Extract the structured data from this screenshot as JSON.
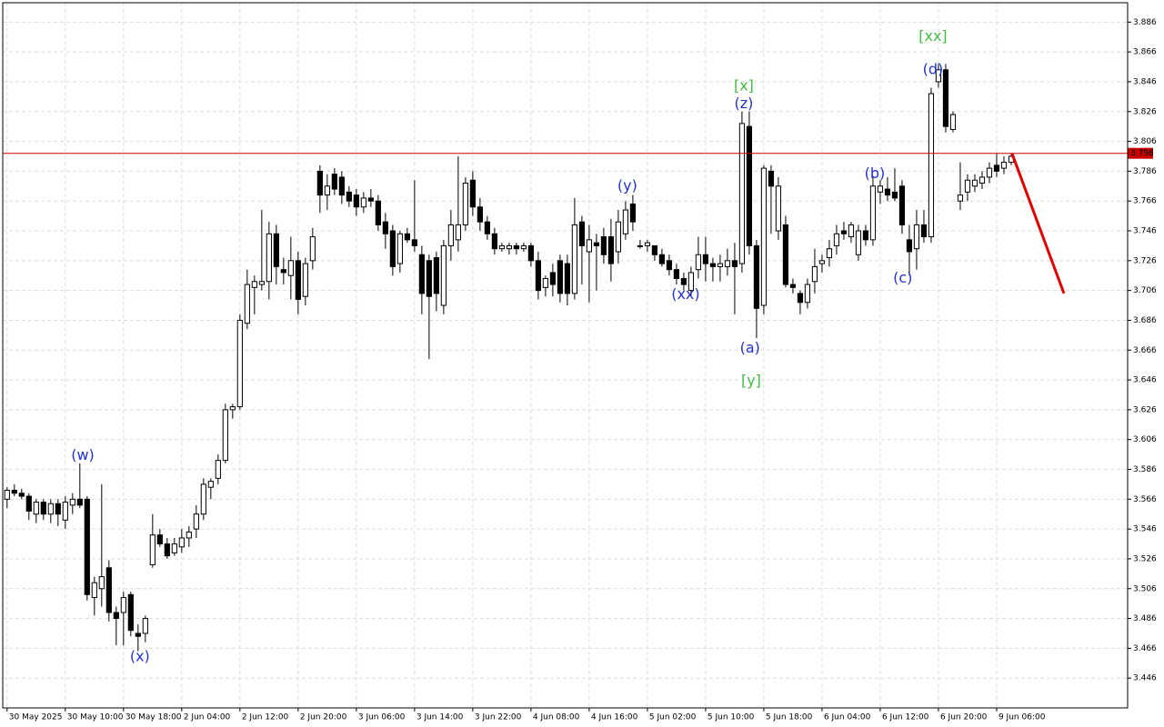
{
  "chart_data": {
    "type": "candlestick",
    "xlim": [
      -0.6,
      154
    ],
    "ylim": [
      3.426,
      3.899
    ],
    "yticks": [
      3.446,
      3.466,
      3.486,
      3.506,
      3.526,
      3.546,
      3.566,
      3.586,
      3.606,
      3.626,
      3.646,
      3.666,
      3.686,
      3.706,
      3.726,
      3.746,
      3.766,
      3.786,
      3.806,
      3.826,
      3.846,
      3.866,
      3.886
    ],
    "xticks": [
      {
        "value": 0,
        "label": "30 May 2025"
      },
      {
        "value": 8,
        "label": "30 May 10:00"
      },
      {
        "value": 16,
        "label": "30 May 18:00"
      },
      {
        "value": 24,
        "label": "2 Jun 04:00"
      },
      {
        "value": 32,
        "label": "2 Jun 12:00"
      },
      {
        "value": 40,
        "label": "2 Jun 20:00"
      },
      {
        "value": 48,
        "label": "3 Jun 06:00"
      },
      {
        "value": 56,
        "label": "3 Jun 14:00"
      },
      {
        "value": 64,
        "label": "3 Jun 22:00"
      },
      {
        "value": 72,
        "label": "4 Jun 08:00"
      },
      {
        "value": 80,
        "label": "4 Jun 16:00"
      },
      {
        "value": 88,
        "label": "5 Jun 02:00"
      },
      {
        "value": 96,
        "label": "5 Jun 10:00"
      },
      {
        "value": 104,
        "label": "5 Jun 18:00"
      },
      {
        "value": 112,
        "label": "6 Jun 04:00"
      },
      {
        "value": 120,
        "label": "6 Jun 12:00"
      },
      {
        "value": 128,
        "label": "6 Jun 20:00"
      },
      {
        "value": 136,
        "label": "9 Jun 06:00"
      }
    ],
    "grid": true,
    "ohlc": [
      [
        3.566,
        3.574,
        3.56,
        3.572
      ],
      [
        3.572,
        3.576,
        3.568,
        3.57
      ],
      [
        3.57,
        3.573,
        3.566,
        3.568
      ],
      [
        3.568,
        3.57,
        3.552,
        3.558
      ],
      [
        3.556,
        3.566,
        3.55,
        3.564
      ],
      [
        3.564,
        3.566,
        3.552,
        3.556
      ],
      [
        3.556,
        3.566,
        3.55,
        3.563
      ],
      [
        3.563,
        3.566,
        3.548,
        3.556
      ],
      [
        3.552,
        3.568,
        3.546,
        3.564
      ],
      [
        3.562,
        3.57,
        3.556,
        3.566
      ],
      [
        3.566,
        3.59,
        3.56,
        3.562
      ],
      [
        3.566,
        3.568,
        3.498,
        3.502
      ],
      [
        3.5,
        3.514,
        3.488,
        3.51
      ],
      [
        3.506,
        3.576,
        3.494,
        3.514
      ],
      [
        3.52,
        3.525,
        3.484,
        3.49
      ],
      [
        3.49,
        3.494,
        3.468,
        3.486
      ],
      [
        3.49,
        3.504,
        3.468,
        3.5
      ],
      [
        3.502,
        3.504,
        3.474,
        3.478
      ],
      [
        3.476,
        3.482,
        3.464,
        3.474
      ],
      [
        3.476,
        3.488,
        3.47,
        3.486
      ],
      [
        3.522,
        3.556,
        3.52,
        3.542
      ],
      [
        3.542,
        3.546,
        3.534,
        3.536
      ],
      [
        3.536,
        3.54,
        3.526,
        3.528
      ],
      [
        3.53,
        3.54,
        3.528,
        3.536
      ],
      [
        3.534,
        3.546,
        3.53,
        3.54
      ],
      [
        3.54,
        3.548,
        3.534,
        3.544
      ],
      [
        3.546,
        3.562,
        3.54,
        3.556
      ],
      [
        3.556,
        3.58,
        3.552,
        3.576
      ],
      [
        3.574,
        3.58,
        3.566,
        3.578
      ],
      [
        3.58,
        3.596,
        3.576,
        3.592
      ],
      [
        3.592,
        3.63,
        3.59,
        3.626
      ],
      [
        3.626,
        3.63,
        3.62,
        3.628
      ],
      [
        3.628,
        3.69,
        3.626,
        3.686
      ],
      [
        3.684,
        3.72,
        3.68,
        3.71
      ],
      [
        3.708,
        3.716,
        3.69,
        3.712
      ],
      [
        3.71,
        3.76,
        3.706,
        3.712
      ],
      [
        3.712,
        3.752,
        3.7,
        3.744
      ],
      [
        3.744,
        3.75,
        3.71,
        3.722
      ],
      [
        3.72,
        3.728,
        3.71,
        3.718
      ],
      [
        3.716,
        3.742,
        3.7,
        3.726
      ],
      [
        3.726,
        3.732,
        3.69,
        3.7
      ],
      [
        3.702,
        3.728,
        3.696,
        3.724
      ],
      [
        3.726,
        3.748,
        3.72,
        3.742
      ],
      [
        3.786,
        3.79,
        3.758,
        3.77
      ],
      [
        3.77,
        3.784,
        3.76,
        3.776
      ],
      [
        3.784,
        3.788,
        3.77,
        3.774
      ],
      [
        3.782,
        3.786,
        3.764,
        3.77
      ],
      [
        3.772,
        3.776,
        3.762,
        3.766
      ],
      [
        3.77,
        3.774,
        3.756,
        3.762
      ],
      [
        3.762,
        3.772,
        3.758,
        3.768
      ],
      [
        3.768,
        3.774,
        3.762,
        3.766
      ],
      [
        3.766,
        3.77,
        3.746,
        3.75
      ],
      [
        3.752,
        3.758,
        3.734,
        3.744
      ],
      [
        3.746,
        3.75,
        3.716,
        3.722
      ],
      [
        3.724,
        3.746,
        3.718,
        3.744
      ],
      [
        3.744,
        3.748,
        3.738,
        3.74
      ],
      [
        3.74,
        3.78,
        3.732,
        3.736
      ],
      [
        3.73,
        3.736,
        3.69,
        3.704
      ],
      [
        3.726,
        3.73,
        3.66,
        3.702
      ],
      [
        3.728,
        3.732,
        3.692,
        3.704
      ],
      [
        3.696,
        3.74,
        3.69,
        3.736
      ],
      [
        3.736,
        3.76,
        3.726,
        3.75
      ],
      [
        3.74,
        3.796,
        3.732,
        3.75
      ],
      [
        3.75,
        3.782,
        3.746,
        3.778
      ],
      [
        3.78,
        3.786,
        3.756,
        3.762
      ],
      [
        3.762,
        3.768,
        3.746,
        3.752
      ],
      [
        3.752,
        3.756,
        3.74,
        3.744
      ],
      [
        3.744,
        3.748,
        3.73,
        3.734
      ],
      [
        3.734,
        3.738,
        3.732,
        3.736
      ],
      [
        3.734,
        3.738,
        3.73,
        3.736
      ],
      [
        3.736,
        3.738,
        3.73,
        3.734
      ],
      [
        3.734,
        3.738,
        3.732,
        3.736
      ],
      [
        3.736,
        3.738,
        3.722,
        3.726
      ],
      [
        3.726,
        3.732,
        3.7,
        3.706
      ],
      [
        3.708,
        3.716,
        3.702,
        3.714
      ],
      [
        3.718,
        3.724,
        3.702,
        3.71
      ],
      [
        3.726,
        3.73,
        3.698,
        3.704
      ],
      [
        3.724,
        3.73,
        3.696,
        3.704
      ],
      [
        3.704,
        3.768,
        3.7,
        3.75
      ],
      [
        3.752,
        3.756,
        3.71,
        3.736
      ],
      [
        3.732,
        3.75,
        3.698,
        3.74
      ],
      [
        3.738,
        3.744,
        3.706,
        3.736
      ],
      [
        3.742,
        3.748,
        3.724,
        3.73
      ],
      [
        3.742,
        3.754,
        3.712,
        3.724
      ],
      [
        3.732,
        3.76,
        3.724,
        3.752
      ],
      [
        3.744,
        3.766,
        3.74,
        3.76
      ],
      [
        3.764,
        3.77,
        3.746,
        3.752
      ],
      [
        3.736,
        3.74,
        3.734,
        3.736
      ],
      [
        3.736,
        3.74,
        3.732,
        3.738
      ],
      [
        3.736,
        3.736,
        3.726,
        3.73
      ],
      [
        3.73,
        3.734,
        3.722,
        3.724
      ],
      [
        3.726,
        3.73,
        3.716,
        3.72
      ],
      [
        3.72,
        3.724,
        3.71,
        3.714
      ],
      [
        3.714,
        3.718,
        3.706,
        3.71
      ],
      [
        3.706,
        3.722,
        3.702,
        3.718
      ],
      [
        3.72,
        3.742,
        3.714,
        3.73
      ],
      [
        3.73,
        3.742,
        3.712,
        3.724
      ],
      [
        3.724,
        3.728,
        3.712,
        3.722
      ],
      [
        3.722,
        3.73,
        3.712,
        3.724
      ],
      [
        3.722,
        3.734,
        3.716,
        3.726
      ],
      [
        3.726,
        3.738,
        3.69,
        3.722
      ],
      [
        3.724,
        3.826,
        3.718,
        3.818
      ],
      [
        3.816,
        3.826,
        3.73,
        3.736
      ],
      [
        3.736,
        3.74,
        3.674,
        3.694
      ],
      [
        3.696,
        3.79,
        3.69,
        3.788
      ],
      [
        3.786,
        3.79,
        3.744,
        3.776
      ],
      [
        3.746,
        3.782,
        3.74,
        3.776
      ],
      [
        3.75,
        3.756,
        3.708,
        3.71
      ],
      [
        3.71,
        3.714,
        3.704,
        3.708
      ],
      [
        3.704,
        3.706,
        3.69,
        3.698
      ],
      [
        3.698,
        3.714,
        3.694,
        3.71
      ],
      [
        3.712,
        3.734,
        3.704,
        3.722
      ],
      [
        3.724,
        3.73,
        3.718,
        3.726
      ],
      [
        3.728,
        3.74,
        3.722,
        3.734
      ],
      [
        3.736,
        3.75,
        3.73,
        3.744
      ],
      [
        3.746,
        3.752,
        3.74,
        3.744
      ],
      [
        3.742,
        3.752,
        3.738,
        3.75
      ],
      [
        3.73,
        3.75,
        3.726,
        3.746
      ],
      [
        3.746,
        3.75,
        3.736,
        3.74
      ],
      [
        3.74,
        3.782,
        3.736,
        3.776
      ],
      [
        3.772,
        3.78,
        3.764,
        3.776
      ],
      [
        3.774,
        3.782,
        3.766,
        3.77
      ],
      [
        3.772,
        3.788,
        3.766,
        3.768
      ],
      [
        3.776,
        3.78,
        3.744,
        3.75
      ],
      [
        3.74,
        3.75,
        3.716,
        3.732
      ],
      [
        3.734,
        3.76,
        3.72,
        3.75
      ],
      [
        3.75,
        3.76,
        3.738,
        3.742
      ],
      [
        3.742,
        3.842,
        3.738,
        3.838
      ],
      [
        3.846,
        3.858,
        3.842,
        3.854
      ],
      [
        3.854,
        3.858,
        3.812,
        3.816
      ],
      [
        3.814,
        3.826,
        3.812,
        3.824
      ],
      [
        3.766,
        3.792,
        3.76,
        3.77
      ],
      [
        3.772,
        3.784,
        3.766,
        3.78
      ],
      [
        3.776,
        3.784,
        3.772,
        3.78
      ],
      [
        3.778,
        3.786,
        3.774,
        3.782
      ],
      [
        3.782,
        3.792,
        3.778,
        3.788
      ],
      [
        3.79,
        3.798,
        3.782,
        3.786
      ],
      [
        3.788,
        3.796,
        3.784,
        3.792
      ],
      [
        3.792,
        3.798,
        3.79,
        3.796
      ]
    ],
    "price_line": {
      "value": 3.798,
      "color": "#c80000"
    },
    "forecast": {
      "color": "#e00000",
      "x": [
        138.1,
        145.25
      ],
      "y": [
        3.798,
        3.704
      ]
    },
    "annotations": [
      {
        "text": "(w)",
        "x": 10.4,
        "y": 3.595,
        "color": "#2233cc"
      },
      {
        "text": "(x)",
        "x": 18.25,
        "y": 3.46,
        "color": "#2233cc"
      },
      {
        "text": "(y)",
        "x": 85.25,
        "y": 3.776,
        "color": "#2233cc"
      },
      {
        "text": "(xx)",
        "x": 93.25,
        "y": 3.703,
        "color": "#2233cc"
      },
      {
        "text": "[x]",
        "x": 101.25,
        "y": 3.843,
        "color": "#44bb44"
      },
      {
        "text": "(z)",
        "x": 101.25,
        "y": 3.831,
        "color": "#2233cc"
      },
      {
        "text": "(a)",
        "x": 102.1,
        "y": 3.667,
        "color": "#2233cc"
      },
      {
        "text": "[y]",
        "x": 102.25,
        "y": 3.645,
        "color": "#44bb44"
      },
      {
        "text": "(b)",
        "x": 119.25,
        "y": 3.784,
        "color": "#2233cc"
      },
      {
        "text": "(c)",
        "x": 123.1,
        "y": 3.714,
        "color": "#2233cc"
      },
      {
        "text": "[xx]",
        "x": 127.25,
        "y": 3.876,
        "color": "#44bb44"
      },
      {
        "text": "(d)",
        "x": 127.25,
        "y": 3.854,
        "color": "#2233cc"
      }
    ]
  }
}
